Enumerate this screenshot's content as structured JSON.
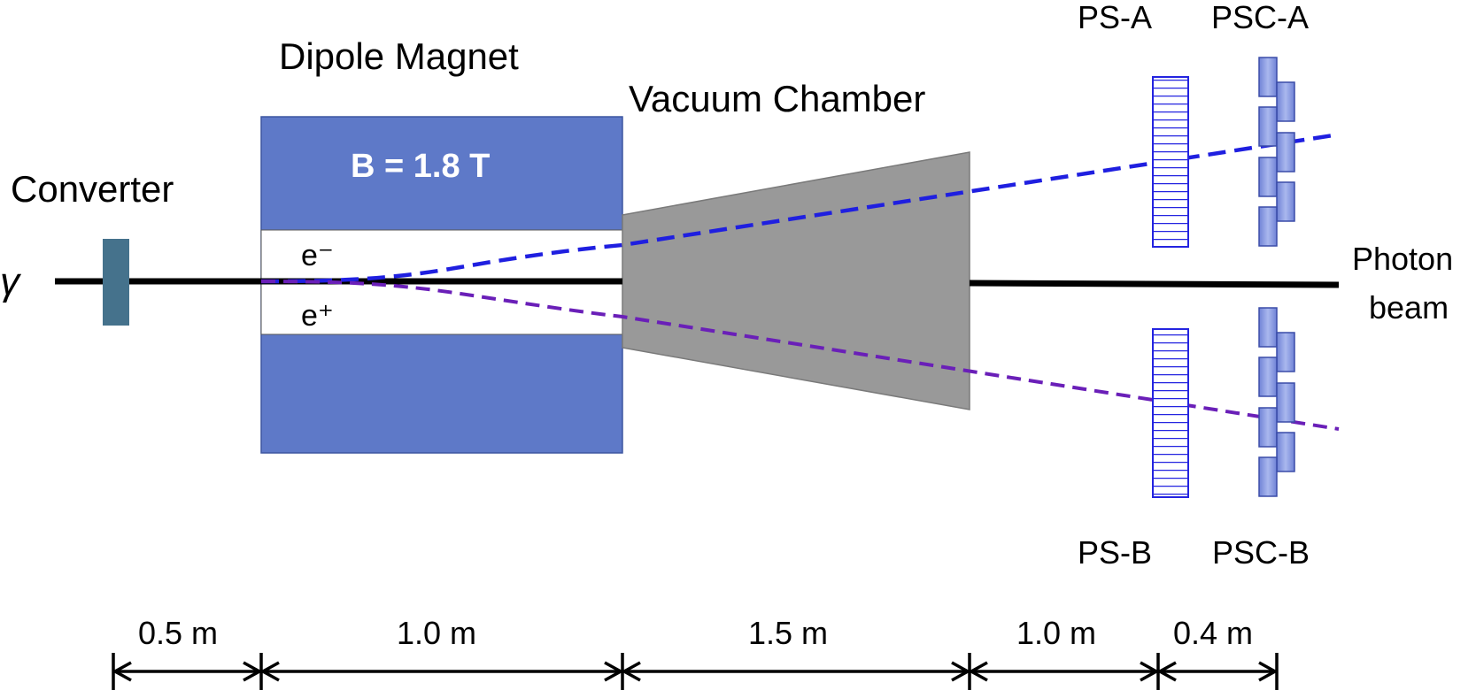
{
  "labels": {
    "gamma": "γ",
    "converter": "Converter",
    "dipole_magnet": "Dipole Magnet",
    "field": "B  = 1.8 T",
    "electron": "e⁻",
    "positron": "e⁺",
    "vacuum_chamber": "Vacuum Chamber",
    "ps_a": "PS-A",
    "psc_a": "PSC-A",
    "ps_b": "PS-B",
    "psc_b": "PSC-B",
    "photon_beam_line1": "Photon",
    "photon_beam_line2": "beam"
  },
  "distances": [
    "0.5 m",
    "1.0 m",
    "1.5 m",
    "1.0 m",
    "0.4 m"
  ],
  "colors": {
    "magnet": "#5e79c8",
    "converter": "#45728c",
    "chamber": "#999999",
    "electron_track": "#1f1fe0",
    "positron_track": "#6a1fb8",
    "hodoscope": "#2424e0",
    "psc": "#7f90dc"
  }
}
